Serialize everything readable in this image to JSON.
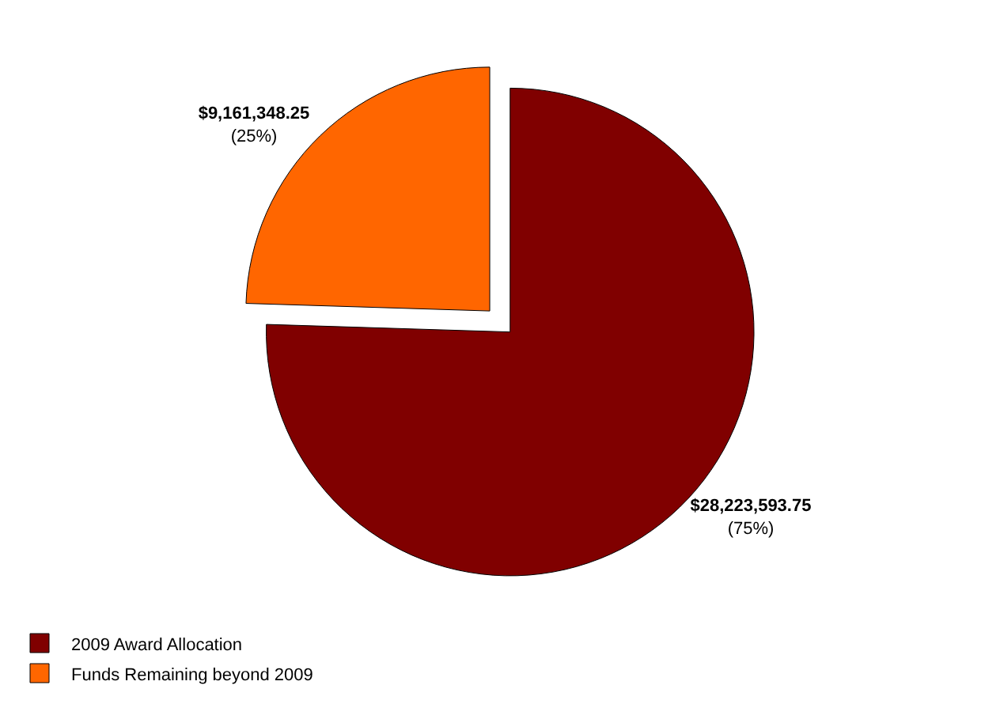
{
  "chart_data": {
    "type": "pie",
    "categories": [
      "2009 Award Allocation",
      "Funds Remaining beyond 2009"
    ],
    "values": [
      28223593.75,
      9161348.25
    ],
    "colors": [
      "#800000",
      "#ff6600"
    ],
    "value_labels": [
      "$28,223,593.75\n(75%)",
      "$9,161,348.25\n(25%)"
    ],
    "legend": "bottom left"
  }
}
